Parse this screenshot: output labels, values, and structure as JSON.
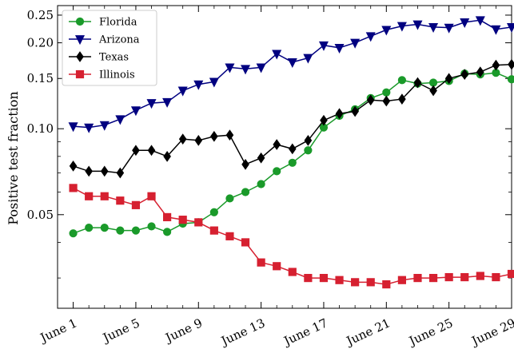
{
  "chart_data": {
    "type": "line",
    "ylabel": "Positive test fraction",
    "xlabel": "",
    "title": "",
    "y_scale": "log",
    "ylim": [
      0.0235,
      0.27
    ],
    "xlim": [
      "May 31",
      "June 29"
    ],
    "x": [
      "June 1",
      "June 2",
      "June 3",
      "June 4",
      "June 5",
      "June 6",
      "June 7",
      "June 8",
      "June 9",
      "June 10",
      "June 11",
      "June 12",
      "June 13",
      "June 14",
      "June 15",
      "June 16",
      "June 17",
      "June 18",
      "June 19",
      "June 20",
      "June 21",
      "June 22",
      "June 23",
      "June 24",
      "June 25",
      "June 26",
      "June 27",
      "June 28",
      "June 29"
    ],
    "x_tick_labels": [
      "June 1",
      "June 5",
      "June 9",
      "June 13",
      "June 17",
      "June 21",
      "June 25",
      "June 29"
    ],
    "y_ticks": [
      0.05,
      0.1,
      0.15,
      0.2,
      0.25
    ],
    "y_tick_labels": [
      "0.05",
      "0.10",
      "0.15",
      "0.20",
      "0.25"
    ],
    "grid": false,
    "legend_position": "top-left",
    "series": [
      {
        "name": "Florida",
        "color": "#1a9a2a",
        "marker": "circle",
        "values": [
          0.043,
          0.045,
          0.045,
          0.044,
          0.044,
          0.0455,
          0.0435,
          0.0465,
          0.047,
          0.051,
          0.057,
          0.06,
          0.064,
          0.071,
          0.076,
          0.084,
          0.101,
          0.111,
          0.117,
          0.128,
          0.134,
          0.148,
          0.144,
          0.145,
          0.147,
          0.156,
          0.155,
          0.157,
          0.149
        ]
      },
      {
        "name": "Arizona",
        "color": "#000080",
        "marker": "triangle-down",
        "values": [
          0.102,
          0.101,
          0.103,
          0.108,
          0.116,
          0.123,
          0.124,
          0.136,
          0.143,
          0.146,
          0.164,
          0.162,
          0.164,
          0.183,
          0.171,
          0.177,
          0.196,
          0.192,
          0.2,
          0.211,
          0.222,
          0.229,
          0.232,
          0.227,
          0.226,
          0.236,
          0.24,
          0.223,
          0.227
        ]
      },
      {
        "name": "Texas",
        "color": "#000000",
        "marker": "diamond",
        "values": [
          0.074,
          0.071,
          0.071,
          0.07,
          0.084,
          0.084,
          0.08,
          0.092,
          0.091,
          0.094,
          0.095,
          0.075,
          0.079,
          0.088,
          0.085,
          0.091,
          0.107,
          0.113,
          0.115,
          0.126,
          0.125,
          0.127,
          0.145,
          0.136,
          0.15,
          0.155,
          0.158,
          0.167,
          0.168
        ]
      },
      {
        "name": "Illinois",
        "color": "#d62030",
        "marker": "square",
        "values": [
          0.062,
          0.058,
          0.058,
          0.056,
          0.054,
          0.058,
          0.049,
          0.048,
          0.047,
          0.044,
          0.042,
          0.04,
          0.034,
          0.033,
          0.0315,
          0.03,
          0.03,
          0.0295,
          0.029,
          0.029,
          0.0285,
          0.0295,
          0.03,
          0.03,
          0.0302,
          0.0302,
          0.0305,
          0.0302,
          0.031
        ]
      }
    ]
  }
}
